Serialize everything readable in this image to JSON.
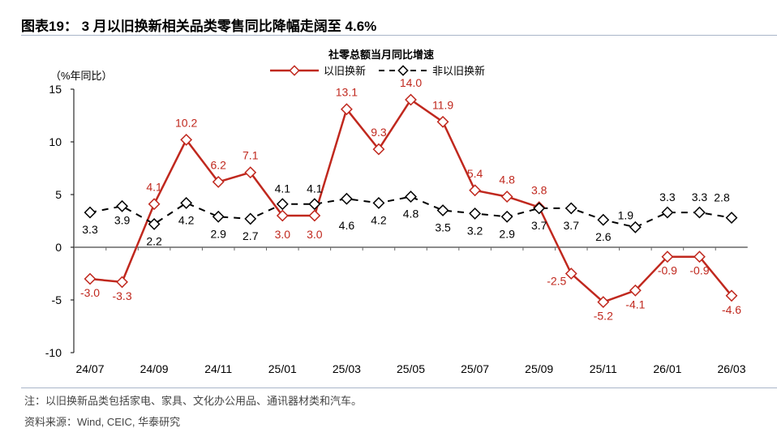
{
  "title": "图表19： 3 月以旧换新相关品类零售同比降幅走阔至 4.6%",
  "note": "注：以旧换新品类包括家电、家具、文化办公用品、通讯器材类和汽车。",
  "source": "资料来源：Wind, CEIC, 华泰研究",
  "chart_data": {
    "type": "line",
    "title": "社零总额当月同比增速",
    "ylabel": "（%年同比）",
    "ylim": [
      -10,
      15
    ],
    "yticks": [
      15,
      10,
      5,
      0,
      -5,
      -10
    ],
    "legend_placement": "top",
    "grid": false,
    "categories": [
      "24/07",
      "24/08",
      "24/09",
      "24/10",
      "24/11",
      "24/12",
      "25/01",
      "25/02",
      "25/03",
      "25/04",
      "25/05",
      "25/06",
      "25/07",
      "25/08",
      "25/09",
      "25/10",
      "25/11",
      "25/12",
      "26/01",
      "26/02",
      "26/03"
    ],
    "xtick_labels": [
      "24/07",
      "24/09",
      "24/11",
      "25/01",
      "25/03",
      "25/05",
      "25/07",
      "25/09",
      "25/11",
      "26/01",
      "26/03"
    ],
    "series": [
      {
        "name": "以旧换新",
        "color": "#c0281e",
        "style": "solid",
        "marker": "diamond",
        "values": [
          -3.0,
          -3.3,
          4.1,
          10.2,
          6.2,
          7.1,
          3.0,
          3.0,
          13.1,
          9.3,
          14.0,
          11.9,
          5.4,
          4.8,
          3.8,
          -2.5,
          -5.2,
          -4.1,
          -0.9,
          -0.9,
          -4.6
        ]
      },
      {
        "name": "非以旧换新",
        "color": "#000000",
        "style": "dashed",
        "marker": "diamond",
        "values": [
          3.3,
          3.9,
          2.2,
          4.2,
          2.9,
          2.7,
          4.1,
          4.1,
          4.6,
          4.2,
          4.8,
          3.5,
          3.2,
          2.9,
          3.7,
          3.7,
          2.6,
          1.9,
          3.3,
          3.3,
          2.8
        ]
      }
    ]
  }
}
